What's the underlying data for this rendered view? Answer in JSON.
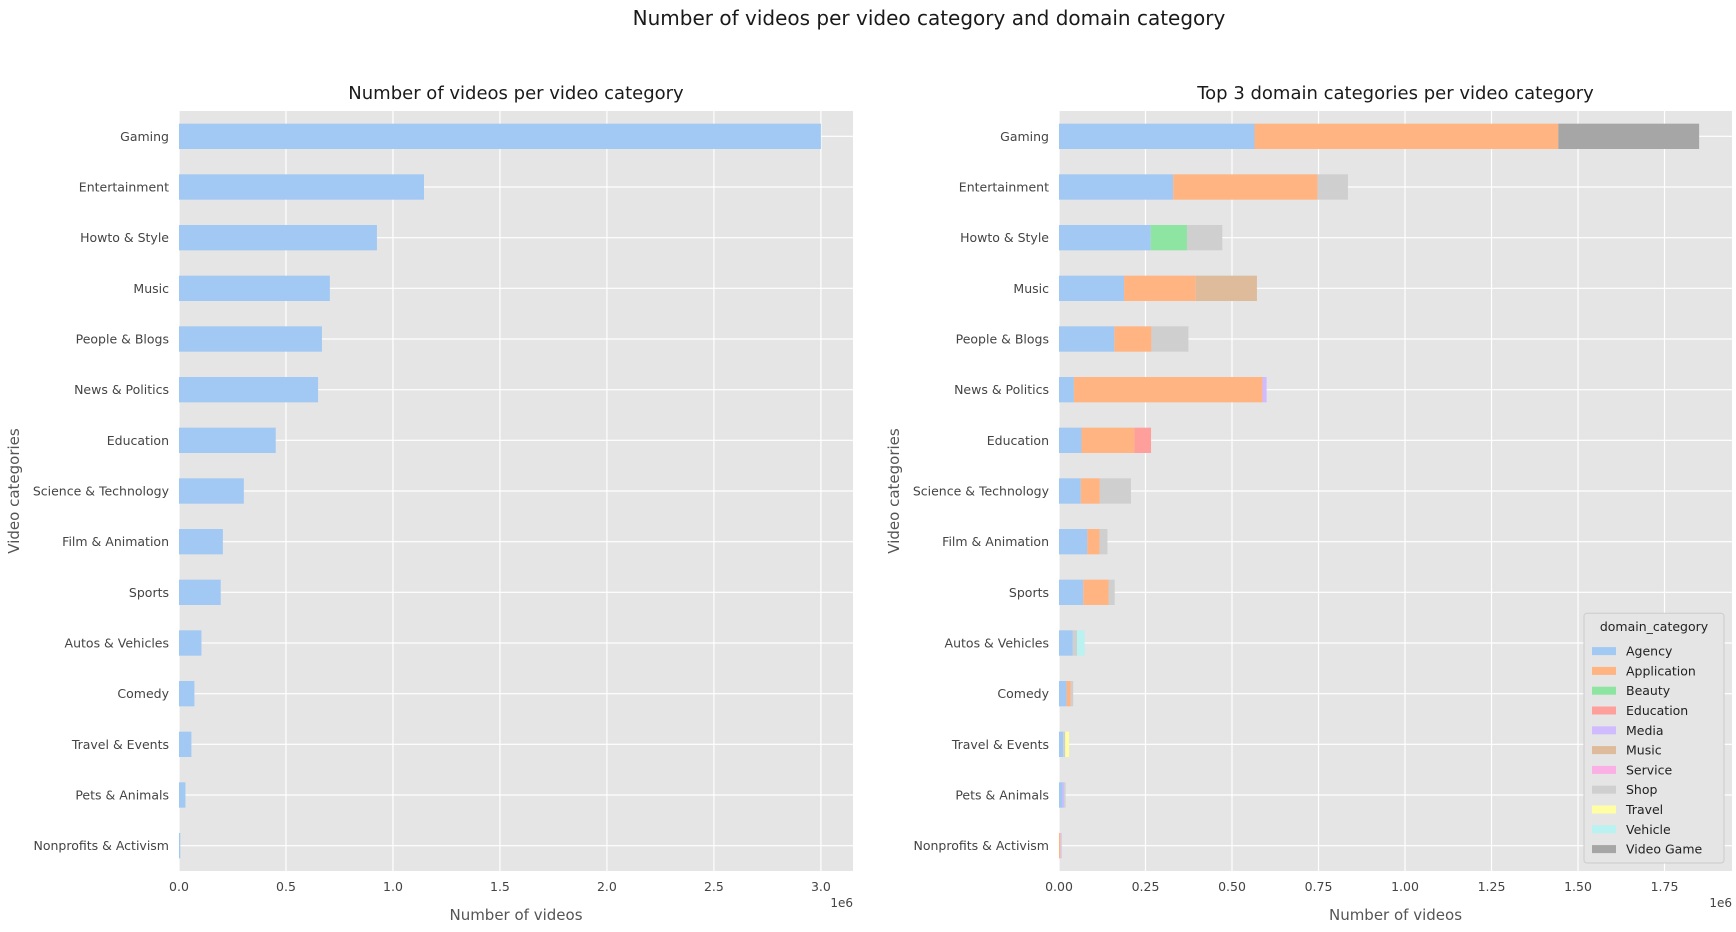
{
  "figure": {
    "title": "Number of videos per video category and domain category"
  },
  "colors": {
    "Agency": "#a1c9f4",
    "Application": "#ffb482",
    "Beauty": "#8de5a1",
    "Education": "#ff9f9b",
    "Media": "#d0bbff",
    "Music": "#debb9b",
    "Service": "#fab0e4",
    "Shop": "#cfcfcf",
    "Travel": "#fffea3",
    "Vehicle": "#b9f2f0",
    "Video Game": "#a6a6a6",
    "left_bar": "#a1c9f4",
    "panel_bg": "#e5e5e5",
    "grid": "#ffffff"
  },
  "chart_data": [
    {
      "type": "bar",
      "orientation": "horizontal",
      "title": "Number of videos per video category",
      "xlabel": "Number of videos",
      "ylabel": "Video categories",
      "x_offset_label": "1e6",
      "xlim": [
        0,
        3150000
      ],
      "xticks": [
        0,
        500000,
        1000000,
        1500000,
        2000000,
        2500000,
        3000000
      ],
      "xtick_labels": [
        "0.0",
        "0.5",
        "1.0",
        "1.5",
        "2.0",
        "2.5",
        "3.0"
      ],
      "grid": true,
      "categories": [
        "Gaming",
        "Entertainment",
        "Howto & Style",
        "Music",
        "People & Blogs",
        "News & Politics",
        "Education",
        "Science & Technology",
        "Film & Animation",
        "Sports",
        "Autos & Vehicles",
        "Comedy",
        "Travel & Events",
        "Pets & Animals",
        "Nonprofits & Activism"
      ],
      "values": [
        3000000,
        1145000,
        925000,
        705000,
        668000,
        650000,
        452000,
        303000,
        205000,
        195000,
        105000,
        72000,
        58000,
        30000,
        6000
      ]
    },
    {
      "type": "bar",
      "orientation": "horizontal",
      "stacked": true,
      "title": "Top 3 domain categories per video category",
      "xlabel": "Number of videos",
      "ylabel": "Video categories",
      "x_offset_label": "1e6",
      "xlim": [
        0,
        1945000
      ],
      "xticks": [
        0,
        250000,
        500000,
        750000,
        1000000,
        1250000,
        1500000,
        1750000
      ],
      "xtick_labels": [
        "0.00",
        "0.25",
        "0.50",
        "0.75",
        "1.00",
        "1.25",
        "1.50",
        "1.75"
      ],
      "grid": true,
      "legend": {
        "title": "domain_category",
        "placement": "lower-right",
        "entries": [
          "Agency",
          "Application",
          "Beauty",
          "Education",
          "Media",
          "Music",
          "Service",
          "Shop",
          "Travel",
          "Vehicle",
          "Video Game"
        ]
      },
      "categories": [
        "Gaming",
        "Entertainment",
        "Howto & Style",
        "Music",
        "People & Blogs",
        "News & Politics",
        "Education",
        "Science & Technology",
        "Film & Animation",
        "Sports",
        "Autos & Vehicles",
        "Comedy",
        "Travel & Events",
        "Pets & Animals",
        "Nonprofits & Activism"
      ],
      "segments": [
        [
          {
            "c": "Agency",
            "v": 565000
          },
          {
            "c": "Application",
            "v": 878000
          },
          {
            "c": "Video Game",
            "v": 407000
          }
        ],
        [
          {
            "c": "Agency",
            "v": 330000
          },
          {
            "c": "Application",
            "v": 417000
          },
          {
            "c": "Shop",
            "v": 88000
          }
        ],
        [
          {
            "c": "Agency",
            "v": 265000
          },
          {
            "c": "Beauty",
            "v": 105000
          },
          {
            "c": "Shop",
            "v": 102000
          }
        ],
        [
          {
            "c": "Agency",
            "v": 188000
          },
          {
            "c": "Application",
            "v": 207000
          },
          {
            "c": "Music",
            "v": 177000
          }
        ],
        [
          {
            "c": "Agency",
            "v": 160000
          },
          {
            "c": "Application",
            "v": 107000
          },
          {
            "c": "Shop",
            "v": 107000
          }
        ],
        [
          {
            "c": "Agency",
            "v": 43000
          },
          {
            "c": "Application",
            "v": 545000
          },
          {
            "c": "Media",
            "v": 12000
          }
        ],
        [
          {
            "c": "Agency",
            "v": 65000
          },
          {
            "c": "Application",
            "v": 153000
          },
          {
            "c": "Education",
            "v": 48000
          }
        ],
        [
          {
            "c": "Agency",
            "v": 63000
          },
          {
            "c": "Application",
            "v": 55000
          },
          {
            "c": "Shop",
            "v": 90000
          }
        ],
        [
          {
            "c": "Agency",
            "v": 82000
          },
          {
            "c": "Application",
            "v": 35000
          },
          {
            "c": "Shop",
            "v": 23000
          }
        ],
        [
          {
            "c": "Agency",
            "v": 70000
          },
          {
            "c": "Application",
            "v": 73000
          },
          {
            "c": "Shop",
            "v": 18000
          }
        ],
        [
          {
            "c": "Agency",
            "v": 40000
          },
          {
            "c": "Shop",
            "v": 12000
          },
          {
            "c": "Vehicle",
            "v": 22000
          }
        ],
        [
          {
            "c": "Agency",
            "v": 22000
          },
          {
            "c": "Application",
            "v": 12000
          },
          {
            "c": "Shop",
            "v": 7000
          }
        ],
        [
          {
            "c": "Agency",
            "v": 12000
          },
          {
            "c": "Shop",
            "v": 6000
          },
          {
            "c": "Travel",
            "v": 11000
          }
        ],
        [
          {
            "c": "Agency",
            "v": 10000
          },
          {
            "c": "Media",
            "v": 5000
          },
          {
            "c": "Shop",
            "v": 4000
          }
        ],
        [
          {
            "c": "Application",
            "v": 3000
          },
          {
            "c": "Service",
            "v": 2000
          },
          {
            "c": "Shop",
            "v": 2000
          }
        ]
      ]
    }
  ]
}
